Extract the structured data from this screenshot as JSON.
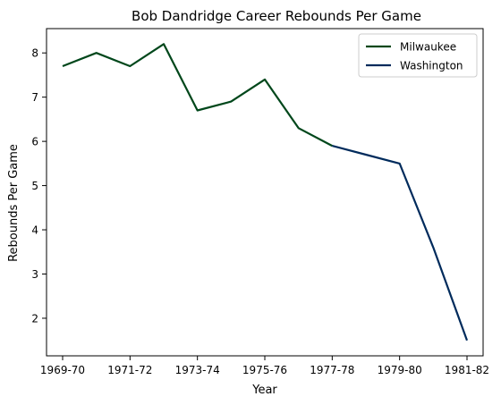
{
  "chart_data": {
    "type": "line",
    "title": "Bob Dandridge Career Rebounds Per Game",
    "xlabel": "Year",
    "ylabel": "Rebounds Per Game",
    "categories": [
      "1969-70",
      "1970-71",
      "1971-72",
      "1972-73",
      "1973-74",
      "1974-75",
      "1975-76",
      "1976-77",
      "1977-78",
      "1978-79",
      "1979-80",
      "1980-81",
      "1981-82"
    ],
    "x_tick_labels": [
      "1969-70",
      "1971-72",
      "1973-74",
      "1975-76",
      "1977-78",
      "1979-80",
      "1981-82"
    ],
    "y_ticks": [
      2,
      3,
      4,
      5,
      6,
      7,
      8
    ],
    "ylim": [
      1.15,
      8.55
    ],
    "grid": false,
    "legend_position": "top-right",
    "series": [
      {
        "name": "Milwaukee",
        "color": "#00471B",
        "x": [
          "1969-70",
          "1970-71",
          "1971-72",
          "1972-73",
          "1973-74",
          "1974-75",
          "1975-76",
          "1976-77",
          "1977-78"
        ],
        "values": [
          7.7,
          8.0,
          7.7,
          8.2,
          6.7,
          6.9,
          7.4,
          6.3,
          5.9
        ]
      },
      {
        "name": "Washington",
        "color": "#002B5C",
        "x": [
          "1977-78",
          "1978-79",
          "1979-80",
          "1980-81",
          "1981-82"
        ],
        "values": [
          5.9,
          5.7,
          5.5,
          3.6,
          1.5
        ]
      }
    ]
  }
}
